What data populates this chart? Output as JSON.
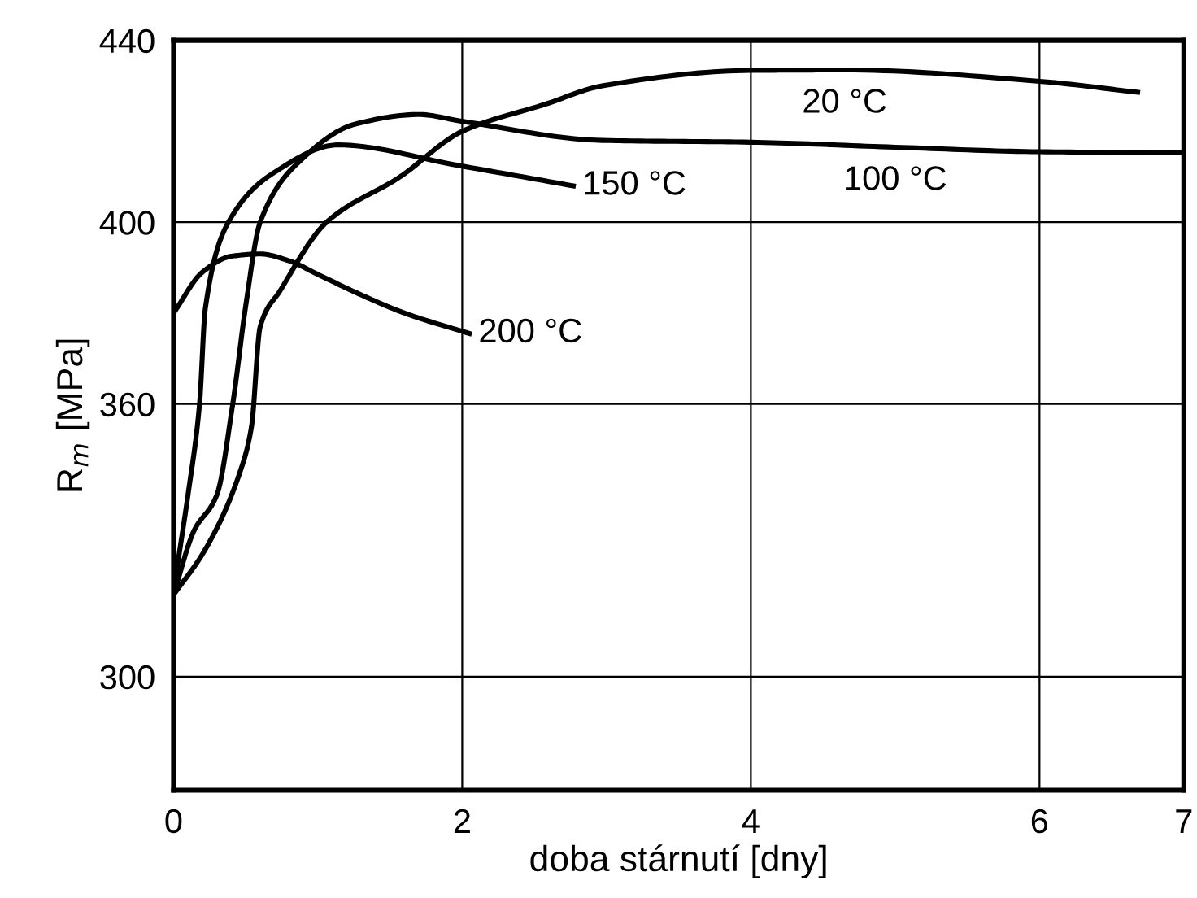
{
  "chart_data": {
    "type": "line",
    "xlabel": "doba stárnutí [dny]",
    "ylabel": "R$_{m}$ [MPa]",
    "xlim": [
      0,
      7
    ],
    "xticks": [
      0,
      2,
      4,
      6,
      7
    ],
    "ylim": [
      275,
      440
    ],
    "yticks": [
      300,
      360,
      400,
      440
    ],
    "grid": true,
    "legend": false,
    "marker": "none",
    "line_style": "solid",
    "series": [
      {
        "color": "#000000",
        "x": [
          0,
          0.22,
          0.46,
          0.54,
          0.6,
          0.74,
          1.06,
          1.57,
          2.0,
          2.58,
          2.97,
          4.0,
          4.65,
          6.0,
          6.68
        ],
        "values": [
          318,
          328,
          345,
          355,
          377,
          385,
          400,
          410,
          420,
          426,
          430,
          433.4,
          433.5,
          431,
          428.6
        ]
      },
      {
        "color": "#000000",
        "x": [
          0,
          0.14,
          0.3,
          0.41,
          0.5,
          0.6,
          0.88,
          1.26,
          1.7,
          2.0,
          2.97,
          4.0,
          5.0,
          6.0,
          7.0
        ],
        "values": [
          318,
          332,
          340,
          360,
          381.6,
          400,
          413.6,
          421.6,
          423.7,
          422.2,
          418,
          417.6,
          416.5,
          415.5,
          415.3
        ]
      },
      {
        "color": "#000000",
        "x": [
          0,
          0.03,
          0.1,
          0.18,
          0.22,
          0.38,
          0.7,
          1.14,
          1.97,
          2.77
        ],
        "values": [
          318,
          325,
          340,
          360,
          381,
          400,
          411,
          417,
          412.5,
          408
        ]
      },
      {
        "color": "#000000",
        "x": [
          0,
          0.2,
          0.4,
          0.6,
          0.8,
          1.0,
          1.3,
          1.6,
          2.05
        ],
        "values": [
          380,
          389,
          392.5,
          393,
          391.5,
          388.5,
          384,
          380,
          375.5
        ]
      }
    ],
    "annotations": [
      {
        "text": "20 °C",
        "x": 4.65,
        "y": 433.5
      },
      {
        "text": "100 °C",
        "x": 5.0,
        "y": 416.5
      },
      {
        "text": "150 °C",
        "x": 2.77,
        "y": 408
      },
      {
        "text": "200 °C",
        "x": 2.05,
        "y": 375.5
      }
    ]
  }
}
